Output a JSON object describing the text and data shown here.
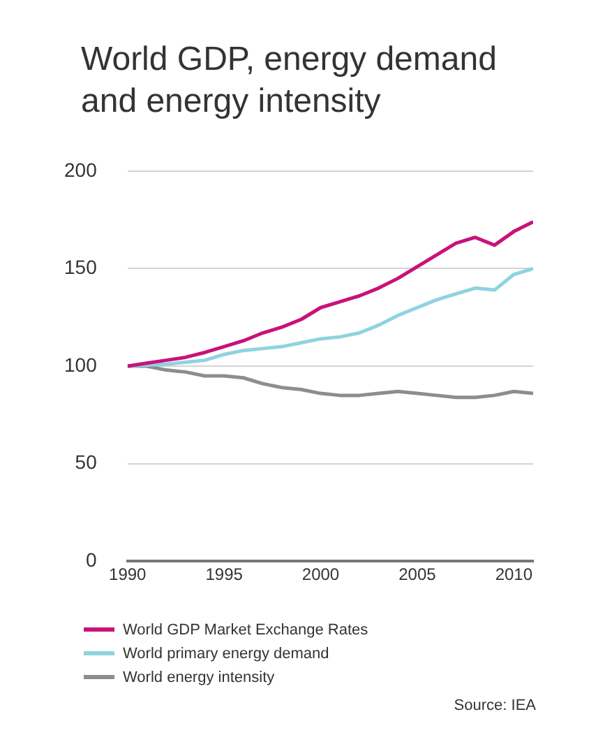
{
  "chart_data": {
    "type": "line",
    "title": "World GDP, energy demand and energy intensity",
    "x": [
      1990,
      1991,
      1992,
      1993,
      1994,
      1995,
      1996,
      1997,
      1998,
      1999,
      2000,
      2001,
      2002,
      2003,
      2004,
      2005,
      2006,
      2007,
      2008,
      2009,
      2010,
      2011
    ],
    "series": [
      {
        "name": "World GDP Market Exchange Rates",
        "color": "#c8127a",
        "values": [
          100,
          101.5,
          103,
          104.5,
          107,
          110,
          113,
          117,
          120,
          124,
          130,
          133,
          136,
          140,
          145,
          151,
          157,
          163,
          166,
          162,
          169,
          174
        ]
      },
      {
        "name": "World primary energy demand",
        "color": "#8fd3df",
        "values": [
          100,
          100.5,
          101,
          102,
          103,
          106,
          108,
          109,
          110,
          112,
          114,
          115,
          117,
          121,
          126,
          130,
          134,
          137,
          140,
          139,
          147,
          150
        ]
      },
      {
        "name": "World energy intensity",
        "color": "#8c8c93",
        "values": [
          100,
          100,
          98,
          97,
          95,
          95,
          94,
          91,
          89,
          88,
          86,
          85,
          85,
          86,
          87,
          86,
          85,
          84,
          84,
          85,
          87,
          86
        ]
      }
    ],
    "xlim": [
      1990,
      2011
    ],
    "xticks": [
      1990,
      1995,
      2000,
      2005,
      2010
    ],
    "ylim": [
      0,
      200
    ],
    "yticks": [
      0,
      50,
      100,
      150,
      200
    ],
    "grid": "y",
    "legend": "bottom",
    "marker": "none",
    "line_style": "solid",
    "annotations": [
      "Source: IEA"
    ]
  }
}
